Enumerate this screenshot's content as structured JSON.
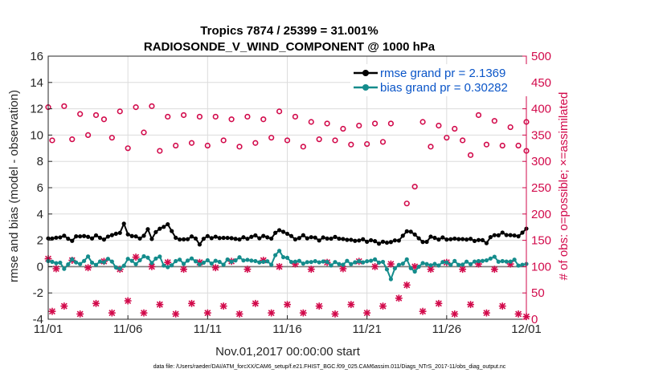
{
  "chart_data": {
    "type": "line",
    "title_line1": "Tropics 7874 / 25399 = 31.001%",
    "title_line2": "RADIOSONDE_V_WIND_COMPONENT @ 1000 hPa",
    "xlabel": "Nov.01,2017 00:00:00 start",
    "ylabel_left": "rmse and bias (model - observation)",
    "ylabel_right": "# of obs: o=possible; ×=assimilated",
    "xlim": [
      0,
      30
    ],
    "ylim_left": [
      -4,
      16
    ],
    "ylim_right": [
      0,
      500
    ],
    "x_ticks": [
      {
        "value": 0,
        "label": "11/01"
      },
      {
        "value": 5,
        "label": "11/06"
      },
      {
        "value": 10,
        "label": "11/11"
      },
      {
        "value": 15,
        "label": "11/16"
      },
      {
        "value": 20,
        "label": "11/21"
      },
      {
        "value": 25,
        "label": "11/26"
      },
      {
        "value": 30,
        "label": "12/01"
      }
    ],
    "y_ticks_left": [
      {
        "value": -4,
        "label": "-4"
      },
      {
        "value": -2,
        "label": "-2"
      },
      {
        "value": 0,
        "label": "0"
      },
      {
        "value": 2,
        "label": "2"
      },
      {
        "value": 4,
        "label": "4"
      },
      {
        "value": 6,
        "label": "6"
      },
      {
        "value": 8,
        "label": "8"
      },
      {
        "value": 10,
        "label": "10"
      },
      {
        "value": 12,
        "label": "12"
      },
      {
        "value": 14,
        "label": "14"
      },
      {
        "value": 16,
        "label": "16"
      }
    ],
    "y_ticks_right": [
      {
        "value": 0,
        "label": "0"
      },
      {
        "value": 50,
        "label": "50"
      },
      {
        "value": 100,
        "label": "100"
      },
      {
        "value": 150,
        "label": "150"
      },
      {
        "value": 200,
        "label": "200"
      },
      {
        "value": 250,
        "label": "250"
      },
      {
        "value": 300,
        "label": "300"
      },
      {
        "value": 350,
        "label": "350"
      },
      {
        "value": 400,
        "label": "400"
      },
      {
        "value": 450,
        "label": "450"
      },
      {
        "value": 500,
        "label": "500"
      }
    ],
    "grid": true,
    "legend_position": "top-right",
    "series": [
      {
        "name": "rmse grand pr = 2.1369",
        "axis": "left",
        "color": "#000000",
        "marker": "filled-circle"
      },
      {
        "name": "bias grand pr = 0.30282",
        "axis": "left",
        "color": "#148c8c",
        "marker": "filled-circle"
      }
    ],
    "rmse_keypoints": [
      [
        0,
        2.1
      ],
      [
        0.5,
        2.2
      ],
      [
        1,
        2.3
      ],
      [
        1.5,
        2.0
      ],
      [
        2,
        2.4
      ],
      [
        2.5,
        2.2
      ],
      [
        3,
        2.3
      ],
      [
        3.5,
        2.1
      ],
      [
        4,
        2.4
      ],
      [
        4.5,
        2.6
      ],
      [
        4.75,
        3.2
      ],
      [
        5,
        2.5
      ],
      [
        5.5,
        2.2
      ],
      [
        6,
        2.3
      ],
      [
        6.25,
        2.8
      ],
      [
        6.5,
        2.2
      ],
      [
        7,
        2.9
      ],
      [
        7.5,
        3.2
      ],
      [
        8,
        2.2
      ],
      [
        8.5,
        2.0
      ],
      [
        9,
        2.3
      ],
      [
        9.5,
        1.8
      ],
      [
        10,
        2.3
      ],
      [
        10.5,
        2.2
      ],
      [
        11,
        2.2
      ],
      [
        12,
        2.1
      ],
      [
        13,
        2.3
      ],
      [
        14,
        2.2
      ],
      [
        14.5,
        2.8
      ],
      [
        15,
        2.5
      ],
      [
        15.5,
        2.1
      ],
      [
        16,
        2.3
      ],
      [
        17,
        2.1
      ],
      [
        18,
        2.2
      ],
      [
        19,
        2.0
      ],
      [
        20,
        2.0
      ],
      [
        21,
        1.8
      ],
      [
        22,
        2.0
      ],
      [
        22.5,
        2.7
      ],
      [
        23,
        2.5
      ],
      [
        23.5,
        1.8
      ],
      [
        24,
        2.2
      ],
      [
        25,
        2.1
      ],
      [
        26,
        2.1
      ],
      [
        27,
        2.0
      ],
      [
        27.5,
        1.9
      ],
      [
        28,
        2.4
      ],
      [
        28.5,
        2.5
      ],
      [
        29,
        2.4
      ],
      [
        29.5,
        2.3
      ],
      [
        30,
        2.9
      ]
    ],
    "bias_keypoints": [
      [
        0,
        0.3
      ],
      [
        0.5,
        0.4
      ],
      [
        1,
        -0.1
      ],
      [
        1.5,
        0.5
      ],
      [
        2,
        0.2
      ],
      [
        2.5,
        0.7
      ],
      [
        3,
        0.1
      ],
      [
        3.5,
        0.5
      ],
      [
        4,
        0.4
      ],
      [
        4.5,
        -0.3
      ],
      [
        5,
        0.6
      ],
      [
        5.5,
        0.2
      ],
      [
        6,
        0.8
      ],
      [
        6.5,
        0.4
      ],
      [
        7,
        0.7
      ],
      [
        7.5,
        -0.2
      ],
      [
        8,
        0.5
      ],
      [
        8.5,
        0.3
      ],
      [
        9,
        0.6
      ],
      [
        9.5,
        0.2
      ],
      [
        10,
        0.4
      ],
      [
        11,
        0.3
      ],
      [
        12,
        0.6
      ],
      [
        13,
        0.4
      ],
      [
        14,
        0.3
      ],
      [
        14.5,
        1.2
      ],
      [
        15,
        0.5
      ],
      [
        16,
        0.3
      ],
      [
        17,
        0.4
      ],
      [
        18,
        0.2
      ],
      [
        19,
        0.3
      ],
      [
        20,
        0.4
      ],
      [
        20.5,
        0.5
      ],
      [
        21,
        0.3
      ],
      [
        21.5,
        -0.8
      ],
      [
        22,
        0.2
      ],
      [
        22.5,
        0.4
      ],
      [
        23,
        -0.4
      ],
      [
        23.5,
        0.3
      ],
      [
        24,
        0.1
      ],
      [
        25,
        0.3
      ],
      [
        26,
        0.2
      ],
      [
        27,
        0.4
      ],
      [
        27.5,
        0.5
      ],
      [
        28,
        0.7
      ],
      [
        28.5,
        0.3
      ],
      [
        29,
        0.5
      ],
      [
        29.5,
        0.2
      ],
      [
        30,
        0.1
      ]
    ],
    "possible_keypoints": [
      [
        0,
        403
      ],
      [
        0.25,
        340
      ],
      [
        1,
        405
      ],
      [
        1.5,
        342
      ],
      [
        2,
        390
      ],
      [
        2.5,
        350
      ],
      [
        3,
        388
      ],
      [
        3.5,
        380
      ],
      [
        4,
        345
      ],
      [
        4.5,
        395
      ],
      [
        5,
        325
      ],
      [
        5.5,
        403
      ],
      [
        6,
        355
      ],
      [
        6.5,
        405
      ],
      [
        7,
        320
      ],
      [
        7.5,
        385
      ],
      [
        8,
        330
      ],
      [
        8.5,
        388
      ],
      [
        9,
        335
      ],
      [
        9.5,
        385
      ],
      [
        10,
        330
      ],
      [
        10.5,
        385
      ],
      [
        11,
        340
      ],
      [
        11.5,
        380
      ],
      [
        12,
        328
      ],
      [
        12.5,
        385
      ],
      [
        13,
        335
      ],
      [
        13.5,
        380
      ],
      [
        14,
        345
      ],
      [
        14.5,
        395
      ],
      [
        15,
        340
      ],
      [
        15.5,
        385
      ],
      [
        16,
        328
      ],
      [
        16.5,
        375
      ],
      [
        17,
        342
      ],
      [
        17.5,
        372
      ],
      [
        18,
        340
      ],
      [
        18.5,
        362
      ],
      [
        19,
        332
      ],
      [
        19.5,
        368
      ],
      [
        20,
        333
      ],
      [
        20.5,
        372
      ],
      [
        21,
        337
      ],
      [
        21.5,
        372
      ],
      [
        22.5,
        220
      ],
      [
        23,
        252
      ],
      [
        23.5,
        375
      ],
      [
        24,
        328
      ],
      [
        24.5,
        368
      ],
      [
        25,
        345
      ],
      [
        25.5,
        362
      ],
      [
        26,
        340
      ],
      [
        26.5,
        312
      ],
      [
        27,
        388
      ],
      [
        27.5,
        332
      ],
      [
        28,
        377
      ],
      [
        28.5,
        330
      ],
      [
        29,
        365
      ],
      [
        29.5,
        330
      ],
      [
        30,
        375
      ],
      [
        30.25,
        320
      ]
    ],
    "assimilated_keypoints": [
      [
        0,
        115
      ],
      [
        0.25,
        15
      ],
      [
        0.5,
        96
      ],
      [
        1,
        25
      ],
      [
        1.5,
        112
      ],
      [
        2,
        10
      ],
      [
        2.5,
        98
      ],
      [
        3,
        30
      ],
      [
        3.5,
        110
      ],
      [
        4,
        12
      ],
      [
        4.5,
        95
      ],
      [
        5,
        35
      ],
      [
        5.5,
        118
      ],
      [
        6,
        12
      ],
      [
        6.5,
        100
      ],
      [
        7,
        28
      ],
      [
        7.5,
        108
      ],
      [
        8,
        10
      ],
      [
        8.5,
        95
      ],
      [
        9,
        30
      ],
      [
        9.5,
        108
      ],
      [
        10,
        12
      ],
      [
        10.5,
        98
      ],
      [
        11,
        25
      ],
      [
        11.5,
        110
      ],
      [
        12,
        10
      ],
      [
        12.5,
        95
      ],
      [
        13,
        30
      ],
      [
        13.5,
        112
      ],
      [
        14,
        12
      ],
      [
        14.5,
        100
      ],
      [
        15,
        28
      ],
      [
        15.5,
        105
      ],
      [
        16,
        12
      ],
      [
        16.5,
        95
      ],
      [
        17,
        25
      ],
      [
        17.5,
        108
      ],
      [
        18,
        10
      ],
      [
        18.5,
        96
      ],
      [
        19,
        28
      ],
      [
        19.5,
        110
      ],
      [
        20,
        12
      ],
      [
        20.5,
        100
      ],
      [
        21,
        25
      ],
      [
        21.5,
        105
      ],
      [
        22,
        40
      ],
      [
        22.5,
        65
      ],
      [
        23,
        100
      ],
      [
        23.5,
        15
      ],
      [
        24,
        95
      ],
      [
        24.5,
        30
      ],
      [
        25,
        108
      ],
      [
        25.5,
        10
      ],
      [
        26,
        95
      ],
      [
        26.5,
        28
      ],
      [
        27,
        105
      ],
      [
        27.5,
        12
      ],
      [
        28,
        95
      ],
      [
        28.5,
        25
      ],
      [
        29,
        105
      ],
      [
        29.5,
        10
      ],
      [
        30,
        5
      ]
    ]
  },
  "footer": "data file: /Users/raeder/DAI/ATM_forcXX/CAM6_setup/f.e21.FHIST_BGC.f09_025.CAM6assim.011/Diags_NTrS_2017-11/obs_diag_output.nc",
  "colors": {
    "rmse": "#000000",
    "bias": "#148c8c",
    "obs": "#d20a4b",
    "legend_text": "#0a55c8",
    "grid": "#dcdcdc"
  }
}
